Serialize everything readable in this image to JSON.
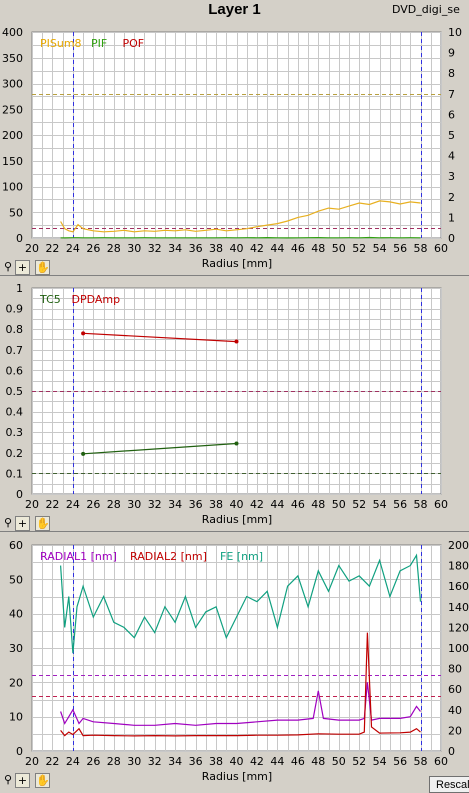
{
  "header": {
    "title": "Layer 1",
    "filename": "DVD_digi_se"
  },
  "toolbar": {
    "zoom_icon": "magnifier-icon",
    "plus_icon": "plus-icon",
    "pan_icon": "hand-icon",
    "plus_glyph": "+",
    "pan_glyph": "✋",
    "zoom_glyph": "⚲"
  },
  "rescale_label": "Rescal",
  "chart_data": [
    {
      "type": "line",
      "xlabel": "Radius [mm]",
      "xlim": [
        20,
        60
      ],
      "xticks": [
        20,
        22,
        24,
        26,
        28,
        30,
        32,
        34,
        36,
        38,
        40,
        42,
        44,
        46,
        48,
        50,
        52,
        54,
        56,
        58,
        60
      ],
      "ylim": [
        0,
        400
      ],
      "yticks": [
        0,
        50,
        100,
        150,
        200,
        250,
        300,
        350,
        400
      ],
      "y2lim": [
        0,
        10
      ],
      "y2ticks": [
        0,
        1,
        2,
        3,
        4,
        5,
        6,
        7,
        8,
        9,
        10
      ],
      "grid": true,
      "vlines": [
        24,
        58
      ],
      "hlines": [
        {
          "y": 280,
          "color": "#b8a040"
        },
        {
          "y": 20,
          "color": "#a03060"
        }
      ],
      "legend": [
        {
          "name": "PISum8",
          "color": "#e8a800"
        },
        {
          "name": "PIF",
          "color": "#30a010"
        },
        {
          "name": "POF",
          "color": "#c00000"
        }
      ],
      "series": [
        {
          "name": "PISum8",
          "color": "#e8b020",
          "x": [
            22.8,
            23.2,
            23.6,
            24.0,
            24.5,
            25.0,
            26,
            27,
            28,
            29,
            30,
            31,
            32,
            33,
            34,
            35,
            36,
            37,
            38,
            39,
            40,
            41,
            42,
            43,
            44,
            45,
            46,
            47,
            48,
            49,
            50,
            51,
            52,
            53,
            54,
            55,
            56,
            57,
            58
          ],
          "y": [
            32,
            18,
            14,
            12,
            26,
            18,
            14,
            12,
            13,
            15,
            12,
            14,
            13,
            15,
            14,
            16,
            13,
            15,
            17,
            14,
            16,
            18,
            22,
            25,
            28,
            33,
            40,
            44,
            52,
            58,
            56,
            62,
            68,
            65,
            72,
            70,
            66,
            70,
            68
          ]
        },
        {
          "name": "PIF",
          "color": "#30a010",
          "x": [
            22.8,
            23.2,
            24.0,
            24.5,
            25,
            26,
            27,
            28,
            29,
            30,
            31,
            32,
            33,
            34,
            35,
            36,
            37,
            38,
            39,
            40,
            41,
            42,
            43,
            44,
            45,
            46,
            47,
            48,
            49,
            50,
            51,
            52,
            53,
            54,
            55,
            56,
            57,
            58
          ],
          "y": [
            0.3,
            0.2,
            0.5,
            0.6,
            0.4,
            0.3,
            0.5,
            0.3,
            0.4,
            0.3,
            0.5,
            0.3,
            0.4,
            0.3,
            0.3,
            0.4,
            0.3,
            0.3,
            0.5,
            0.3,
            0.6,
            0.4,
            0.8,
            0.3,
            0.2,
            0.3,
            0.5,
            0.7,
            0.4,
            0.3,
            0.5,
            0.4,
            0.9,
            0.4,
            0.6,
            0.3,
            0.5,
            0.4
          ]
        }
      ]
    },
    {
      "type": "line",
      "xlabel": "Radius [mm]",
      "xlim": [
        20,
        60
      ],
      "xticks": [
        20,
        22,
        24,
        26,
        28,
        30,
        32,
        34,
        36,
        38,
        40,
        42,
        44,
        46,
        48,
        50,
        52,
        54,
        56,
        58,
        60
      ],
      "ylim": [
        0,
        1
      ],
      "yticks": [
        0,
        0.1,
        0.2,
        0.3,
        0.4,
        0.5,
        0.6,
        0.7,
        0.8,
        0.9,
        1
      ],
      "grid": true,
      "vlines": [
        24,
        58
      ],
      "hlines": [
        {
          "y": 0.5,
          "color": "#a03060"
        },
        {
          "y": 0.1,
          "color": "#406030"
        }
      ],
      "legend": [
        {
          "name": "TC5",
          "color": "#206010"
        },
        {
          "name": "DPDAmp",
          "color": "#c00000"
        }
      ],
      "series": [
        {
          "name": "DPDAmp",
          "color": "#c00000",
          "x": [
            25,
            40
          ],
          "y": [
            0.78,
            0.74
          ]
        },
        {
          "name": "TC5",
          "color": "#206010",
          "x": [
            25,
            40
          ],
          "y": [
            0.195,
            0.245
          ]
        }
      ]
    },
    {
      "type": "line",
      "xlabel": "Radius [mm]",
      "xlim": [
        20,
        60
      ],
      "xticks": [
        20,
        22,
        24,
        26,
        28,
        30,
        32,
        34,
        36,
        38,
        40,
        42,
        44,
        46,
        48,
        50,
        52,
        54,
        56,
        58,
        60
      ],
      "ylim": [
        0,
        60
      ],
      "yticks": [
        0,
        10,
        20,
        30,
        40,
        50,
        60
      ],
      "y2lim": [
        0,
        200
      ],
      "y2ticks": [
        0,
        20,
        40,
        60,
        80,
        100,
        120,
        140,
        160,
        180,
        200
      ],
      "grid": true,
      "vlines": [
        24,
        58
      ],
      "hlines": [
        {
          "y": 22,
          "color": "#a020c0"
        },
        {
          "y": 16,
          "color": "#c02050"
        }
      ],
      "legend": [
        {
          "name": "RADIAL1 [nm]",
          "color": "#a000c0"
        },
        {
          "name": "RADIAL2 [nm]",
          "color": "#c00000"
        },
        {
          "name": "FE [nm]",
          "color": "#10a080"
        }
      ],
      "series": [
        {
          "name": "RADIAL1 [nm]",
          "color": "#a000c0",
          "x": [
            22.8,
            23.2,
            23.6,
            24,
            24.6,
            25,
            26,
            28,
            30,
            32,
            34,
            36,
            38,
            40,
            42,
            44,
            46,
            47.5,
            48,
            48.5,
            50,
            52,
            52.5,
            52.8,
            53.2,
            54,
            56,
            57,
            57.6,
            58
          ],
          "y": [
            11.5,
            8,
            10,
            12,
            8,
            9.5,
            8.5,
            8,
            7.5,
            7.5,
            8,
            7.5,
            8,
            8,
            8.5,
            9,
            9,
            9.5,
            17.5,
            9.5,
            9,
            9,
            9.5,
            20,
            9,
            9.5,
            9.5,
            10,
            13,
            11.5
          ]
        },
        {
          "name": "RADIAL2 [nm]",
          "color": "#c00000",
          "x": [
            22.8,
            23.2,
            23.6,
            24,
            24.6,
            25,
            26,
            28,
            30,
            32,
            34,
            36,
            38,
            40,
            42,
            44,
            46,
            48,
            50,
            52,
            52.5,
            52.8,
            53.2,
            54,
            56,
            57,
            57.6,
            58
          ],
          "y": [
            6,
            4.5,
            5.5,
            4.8,
            6.5,
            4.5,
            4.6,
            4.5,
            4.4,
            4.5,
            4.4,
            4.5,
            4.5,
            4.5,
            4.6,
            4.6,
            4.7,
            5,
            4.9,
            4.9,
            5.5,
            34.5,
            7,
            5.2,
            5.3,
            5.5,
            6.5,
            5.5
          ]
        },
        {
          "name": "FE [nm]",
          "color": "#10a080",
          "y_axis": "right",
          "x": [
            22.8,
            23.2,
            23.6,
            24.0,
            24.4,
            25,
            26,
            27,
            28,
            29,
            30,
            31,
            32,
            33,
            34,
            35,
            36,
            37,
            38,
            39,
            40,
            41,
            42,
            43,
            44,
            45,
            46,
            47,
            48,
            49,
            50,
            51,
            52,
            53,
            54,
            55,
            56,
            57,
            57.6,
            58
          ],
          "y": [
            180,
            120,
            150,
            95,
            140,
            160,
            130,
            150,
            125,
            120,
            110,
            130,
            115,
            140,
            125,
            150,
            120,
            135,
            140,
            110,
            130,
            150,
            145,
            155,
            120,
            160,
            170,
            140,
            175,
            155,
            180,
            165,
            170,
            160,
            185,
            150,
            175,
            180,
            190,
            145
          ]
        }
      ]
    }
  ]
}
